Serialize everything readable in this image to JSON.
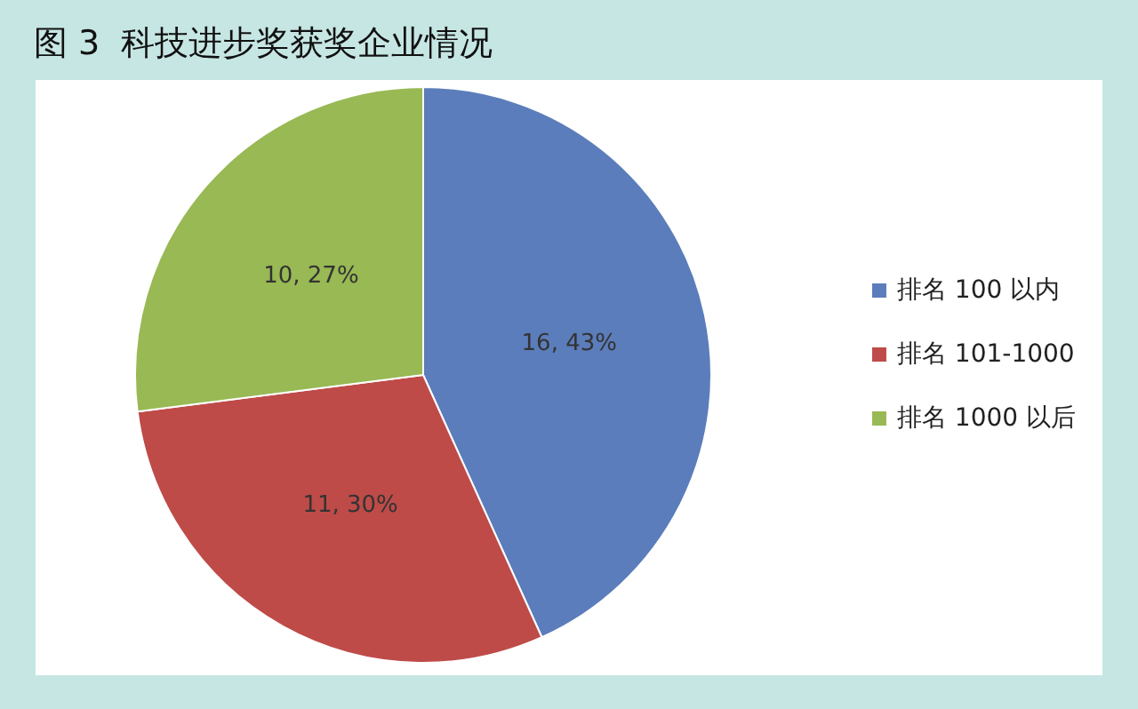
{
  "chart_data": {
    "type": "pie",
    "title": "图 3  科技进步奖获奖企业情况",
    "categories": [
      "排名 100 以内",
      "排名 101-1000",
      "排名 1000 以后"
    ],
    "values": [
      16,
      11,
      10
    ],
    "value_labels": [
      "16, 43%",
      "11, 30%",
      "10, 27%"
    ],
    "colors": [
      "#5b7dbb",
      "#be4b48",
      "#98b954"
    ],
    "legend": "right"
  }
}
